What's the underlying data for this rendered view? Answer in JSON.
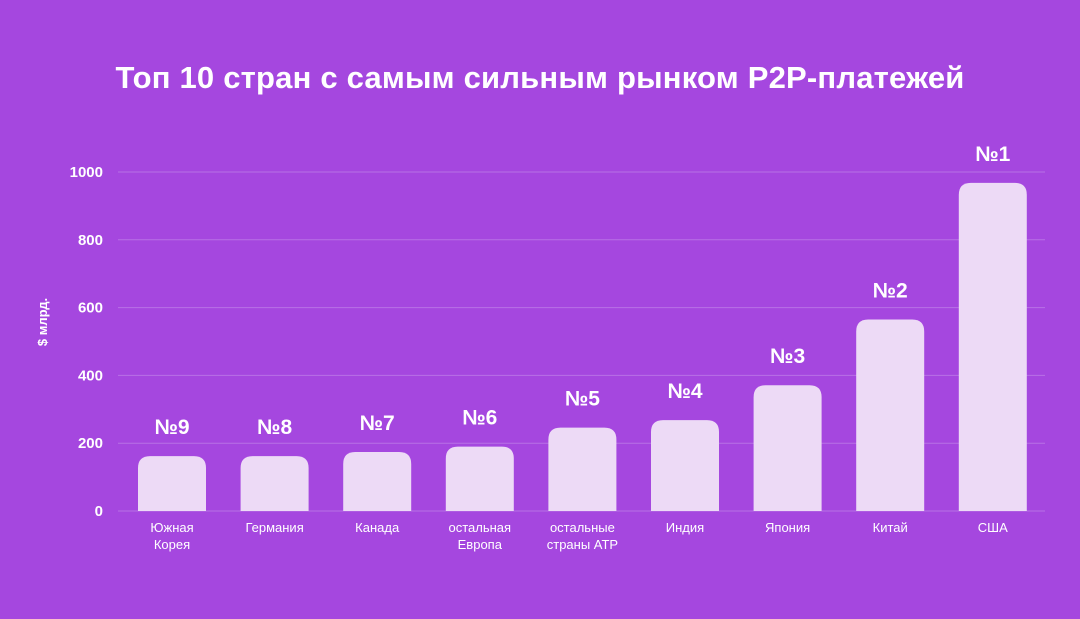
{
  "chart_data": {
    "type": "bar",
    "title": "Топ 10 стран с самым сильным рынком P2P-платежей",
    "ylabel": "$ млрд.",
    "xlabel": "",
    "ylim": [
      0,
      1000
    ],
    "yticks": [
      "0",
      "200",
      "400",
      "600",
      "800",
      "1000"
    ],
    "grid": true,
    "categories": [
      [
        "Южная",
        "Корея"
      ],
      [
        "Германия"
      ],
      [
        "Канада"
      ],
      [
        "остальная",
        "Европа"
      ],
      [
        "остальные",
        "страны АТР"
      ],
      [
        "Индия"
      ],
      [
        "Япония"
      ],
      [
        "Китай"
      ],
      [
        "США"
      ]
    ],
    "values": [
      162,
      162,
      174,
      190,
      246,
      268,
      371,
      565,
      968
    ],
    "ranks": [
      "№9",
      "№8",
      "№7",
      "№6",
      "№5",
      "№4",
      "№3",
      "№2",
      "№1"
    ],
    "colors": {
      "background": "#a547df",
      "bar": "#eddaf6",
      "grid": "#b870e6"
    }
  }
}
